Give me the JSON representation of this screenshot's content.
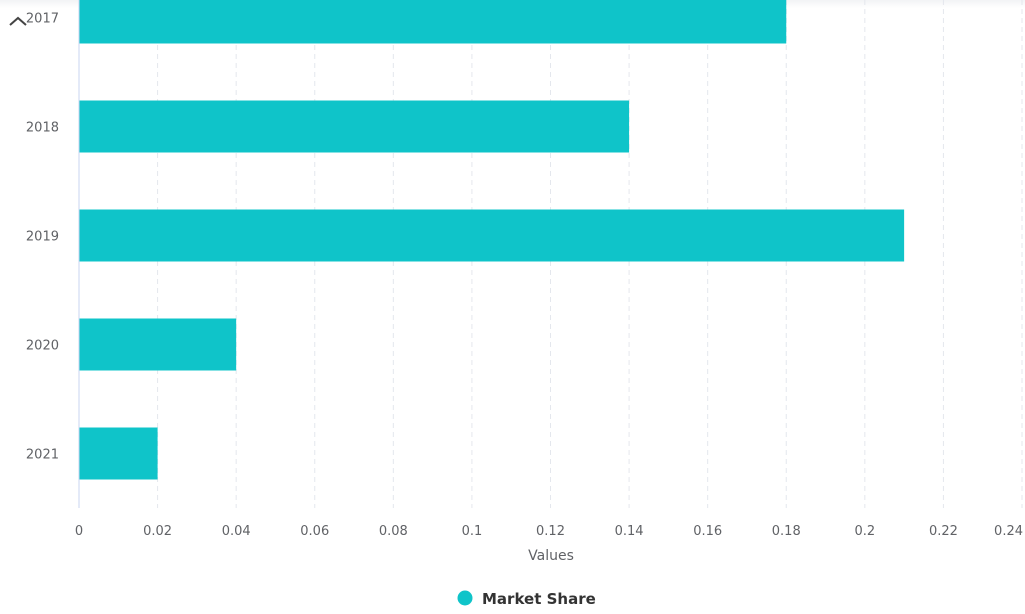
{
  "chart_data": {
    "type": "bar",
    "orientation": "horizontal",
    "categories": [
      "2017",
      "2018",
      "2019",
      "2020",
      "2021"
    ],
    "series": [
      {
        "name": "Market Share",
        "values": [
          0.18,
          0.14,
          0.21,
          0.04,
          0.02
        ],
        "color": "#0fc4c9"
      }
    ],
    "x_ticks": [
      "0",
      "0.02",
      "0.04",
      "0.06",
      "0.08",
      "0.1",
      "0.12",
      "0.14",
      "0.16",
      "0.18",
      "0.2",
      "0.22",
      "0.24"
    ],
    "xlim": [
      0,
      0.24
    ],
    "xlabel": "Values",
    "ylabel": "",
    "grid": "vertical-dashed",
    "legend_position": "bottom-center"
  },
  "colors": {
    "bar": "#0fc4c9",
    "grid": "#e4e7ed",
    "axis": "#c9d6f2",
    "text": "#606266"
  },
  "controls": {
    "collapse_icon": "chevron-up-icon"
  }
}
